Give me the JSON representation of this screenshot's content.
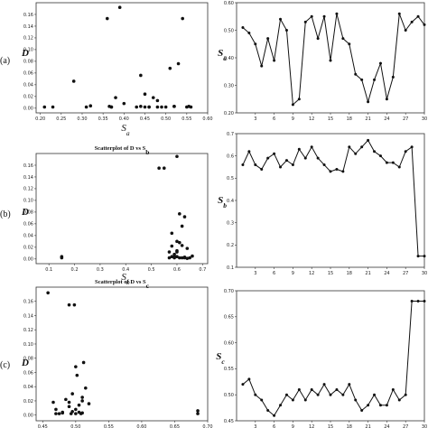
{
  "panel_labels": [
    "(a)",
    "(b)",
    "(c)"
  ],
  "chart_data": [
    {
      "type": "scatter",
      "title": "",
      "xlabel": "S_a",
      "ylabel": "D",
      "xlim": [
        0.19,
        0.6
      ],
      "ylim": [
        -0.008,
        0.18
      ],
      "x_ticks": [
        "0.20",
        "0.25",
        "0.30",
        "0.35",
        "0.40",
        "0.45",
        "0.50",
        "0.55",
        "0.60"
      ],
      "y_ticks": [
        "0.00",
        "0.02",
        "0.04",
        "0.06",
        "0.08",
        "0.10",
        "0.12",
        "0.14",
        "0.16"
      ],
      "x": [
        0.21,
        0.23,
        0.28,
        0.31,
        0.32,
        0.36,
        0.37,
        0.38,
        0.39,
        0.4,
        0.43,
        0.44,
        0.45,
        0.46,
        0.47,
        0.48,
        0.49,
        0.5,
        0.51,
        0.52,
        0.53,
        0.54,
        0.55,
        0.555,
        0.56,
        0.45,
        0.46,
        0.48,
        0.52,
        0.37,
        0.365,
        0.44
      ],
      "y": [
        0.002,
        0.002,
        0.046,
        0.002,
        0.004,
        0.153,
        0.002,
        0.018,
        0.172,
        0.008,
        0.002,
        0.056,
        0.024,
        0.002,
        0.018,
        0.013,
        0.002,
        0.002,
        0.068,
        0.003,
        0.076,
        0.153,
        0.002,
        0.003,
        0.002,
        0.002,
        0.002,
        0.002,
        0.003,
        0.002,
        0.003,
        0.003
      ]
    },
    {
      "type": "line",
      "title": "",
      "xlabel": "",
      "ylabel": "S_a",
      "xlim": [
        0,
        30
      ],
      "ylim": [
        0.2,
        0.6
      ],
      "x_ticks": [
        "3",
        "6",
        "9",
        "12",
        "15",
        "18",
        "21",
        "24",
        "27",
        "30"
      ],
      "y_ticks": [
        "0.20",
        "0.30",
        "0.40",
        "0.50",
        "0.60"
      ],
      "x": [
        1,
        2,
        3,
        4,
        5,
        6,
        7,
        8,
        9,
        10,
        11,
        12,
        13,
        14,
        15,
        16,
        17,
        18,
        19,
        20,
        21,
        22,
        23,
        24,
        25,
        26,
        27,
        28,
        29,
        30
      ],
      "y": [
        0.51,
        0.49,
        0.45,
        0.37,
        0.47,
        0.39,
        0.54,
        0.5,
        0.23,
        0.25,
        0.53,
        0.55,
        0.47,
        0.55,
        0.39,
        0.56,
        0.47,
        0.45,
        0.34,
        0.32,
        0.24,
        0.32,
        0.38,
        0.25,
        0.33,
        0.56,
        0.5,
        0.53,
        0.55,
        0.52
      ]
    },
    {
      "type": "scatter",
      "title": "Scatterplot of D vs S_b",
      "xlabel": "S_b",
      "ylabel": "D",
      "xlim": [
        0.05,
        0.72
      ],
      "ylim": [
        -0.008,
        0.18
      ],
      "x_ticks": [
        "0.1",
        "0.2",
        "0.3",
        "0.4",
        "0.5",
        "0.6",
        "0.7"
      ],
      "y_ticks": [
        "0.00",
        "0.02",
        "0.04",
        "0.06",
        "0.08",
        "0.10",
        "0.12",
        "0.14",
        "0.16"
      ],
      "x": [
        0.15,
        0.15,
        0.53,
        0.55,
        0.6,
        0.58,
        0.59,
        0.61,
        0.62,
        0.63,
        0.6,
        0.57,
        0.58,
        0.59,
        0.6,
        0.61,
        0.62,
        0.63,
        0.64,
        0.65,
        0.66,
        0.6,
        0.61,
        0.62,
        0.57,
        0.58,
        0.59,
        0.63,
        0.64,
        0.6
      ],
      "y": [
        0.002,
        0.004,
        0.155,
        0.155,
        0.175,
        0.044,
        0.004,
        0.077,
        0.056,
        0.072,
        0.03,
        0.002,
        0.022,
        0.002,
        0.012,
        0.028,
        0.002,
        0.003,
        0.018,
        0.002,
        0.005,
        0.014,
        0.002,
        0.023,
        0.012,
        0.004,
        0.008,
        0.002,
        0.001,
        0.004
      ]
    },
    {
      "type": "line",
      "title": "",
      "xlabel": "",
      "ylabel": "S_b",
      "xlim": [
        0,
        30
      ],
      "ylim": [
        0.1,
        0.7
      ],
      "x_ticks": [
        "3",
        "6",
        "9",
        "12",
        "15",
        "18",
        "21",
        "24",
        "27",
        "30"
      ],
      "y_ticks": [
        "0.1",
        "0.2",
        "0.3",
        "0.4",
        "0.5",
        "0.6",
        "0.7"
      ],
      "x": [
        1,
        2,
        3,
        4,
        5,
        6,
        7,
        8,
        9,
        10,
        11,
        12,
        13,
        14,
        15,
        16,
        17,
        18,
        19,
        20,
        21,
        22,
        23,
        24,
        25,
        26,
        27,
        28,
        29,
        30
      ],
      "y": [
        0.56,
        0.62,
        0.56,
        0.54,
        0.59,
        0.61,
        0.55,
        0.58,
        0.56,
        0.63,
        0.59,
        0.64,
        0.59,
        0.56,
        0.53,
        0.54,
        0.53,
        0.64,
        0.61,
        0.64,
        0.67,
        0.62,
        0.6,
        0.57,
        0.57,
        0.55,
        0.62,
        0.64,
        0.15,
        0.15
      ]
    },
    {
      "type": "scatter",
      "title": "Scatterplot of D vs S_c",
      "xlabel": "",
      "ylabel": "D",
      "xlim": [
        0.44,
        0.7
      ],
      "ylim": [
        -0.008,
        0.18
      ],
      "x_ticks": [
        "0.45",
        "0.50",
        "0.55",
        "0.60",
        "0.65",
        "0.70"
      ],
      "y_ticks": [
        "0.00",
        "0.02",
        "0.04",
        "0.06",
        "0.08",
        "0.10",
        "0.12",
        "0.14",
        "0.16"
      ],
      "x": [
        0.458,
        0.466,
        0.47,
        0.475,
        0.48,
        0.485,
        0.49,
        0.493,
        0.495,
        0.498,
        0.5,
        0.502,
        0.505,
        0.508,
        0.51,
        0.512,
        0.515,
        0.52,
        0.47,
        0.49,
        0.5,
        0.505,
        0.51,
        0.48,
        0.495,
        0.685,
        0.685,
        0.51,
        0.5,
        0.49
      ],
      "y": [
        0.172,
        0.018,
        0.008,
        0.002,
        0.004,
        0.022,
        0.155,
        0.002,
        0.005,
        0.155,
        0.068,
        0.056,
        0.014,
        0.002,
        0.025,
        0.074,
        0.038,
        0.016,
        0.002,
        0.012,
        0.002,
        0.004,
        0.02,
        0.003,
        0.03,
        0.006,
        0.002,
        0.003,
        0.008,
        0.018
      ]
    },
    {
      "type": "line",
      "title": "",
      "xlabel": "",
      "ylabel": "S_c",
      "xlim": [
        0,
        30
      ],
      "ylim": [
        0.45,
        0.7
      ],
      "x_ticks": [
        "3",
        "6",
        "9",
        "12",
        "15",
        "18",
        "21",
        "24",
        "27",
        "30"
      ],
      "y_ticks": [
        "0.45",
        "0.50",
        "0.55",
        "0.60",
        "0.65",
        "0.70"
      ],
      "x": [
        1,
        2,
        3,
        4,
        5,
        6,
        7,
        8,
        9,
        10,
        11,
        12,
        13,
        14,
        15,
        16,
        17,
        18,
        19,
        20,
        21,
        22,
        23,
        24,
        25,
        26,
        27,
        28,
        29,
        30
      ],
      "y": [
        0.52,
        0.53,
        0.5,
        0.49,
        0.47,
        0.46,
        0.48,
        0.5,
        0.49,
        0.51,
        0.49,
        0.51,
        0.5,
        0.52,
        0.5,
        0.51,
        0.5,
        0.52,
        0.49,
        0.47,
        0.48,
        0.5,
        0.48,
        0.48,
        0.51,
        0.49,
        0.5,
        0.68,
        0.68,
        0.68
      ]
    }
  ]
}
